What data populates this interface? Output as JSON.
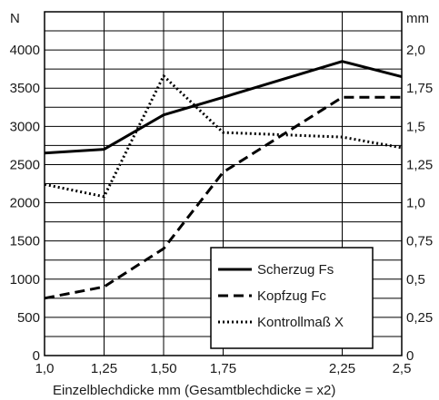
{
  "chart_data": {
    "type": "line",
    "xlabel": "Einzelblechdicke mm (Gesamtblechdicke = x2)",
    "y_left_unit": "N",
    "y_right_unit": "mm",
    "x": [
      1.0,
      1.25,
      1.5,
      1.75,
      2.25,
      2.5
    ],
    "x_tick_labels": [
      "1,0",
      "1,25",
      "1,50",
      "1,75",
      "2,25",
      "2,5"
    ],
    "y_left_lim": [
      0,
      4500
    ],
    "y_left_ticks": [
      0,
      500,
      1000,
      1500,
      2000,
      2500,
      3000,
      3500,
      4000
    ],
    "y_left_tick_labels": [
      "0",
      "500",
      "1000",
      "1500",
      "2000",
      "2500",
      "3000",
      "3500",
      "4000"
    ],
    "y_right_lim": [
      0,
      2.25
    ],
    "y_right_ticks": [
      0,
      0.25,
      0.5,
      0.75,
      1.0,
      1.25,
      1.5,
      1.75,
      2.0
    ],
    "y_right_tick_labels": [
      "0",
      "0,25",
      "0,5",
      "0,75",
      "1,0",
      "1,25",
      "1,5",
      "1,75",
      "2,0"
    ],
    "grid": true,
    "legend_position": "bottom-right",
    "series": [
      {
        "name": "Scherzug Fs",
        "style": "solid",
        "axis": "left",
        "values": [
          2650,
          2700,
          3150,
          3380,
          3850,
          3650
        ]
      },
      {
        "name": "Kopfzug Fc",
        "style": "dashed",
        "axis": "left",
        "values": [
          750,
          900,
          1400,
          2400,
          3380,
          3380
        ]
      },
      {
        "name": "Kontrollmaß X",
        "style": "dotted",
        "axis": "right",
        "values": [
          1.12,
          1.04,
          1.83,
          1.46,
          1.43,
          1.36
        ]
      }
    ],
    "colors": {
      "line": "#000000",
      "grid": "#000000"
    }
  }
}
